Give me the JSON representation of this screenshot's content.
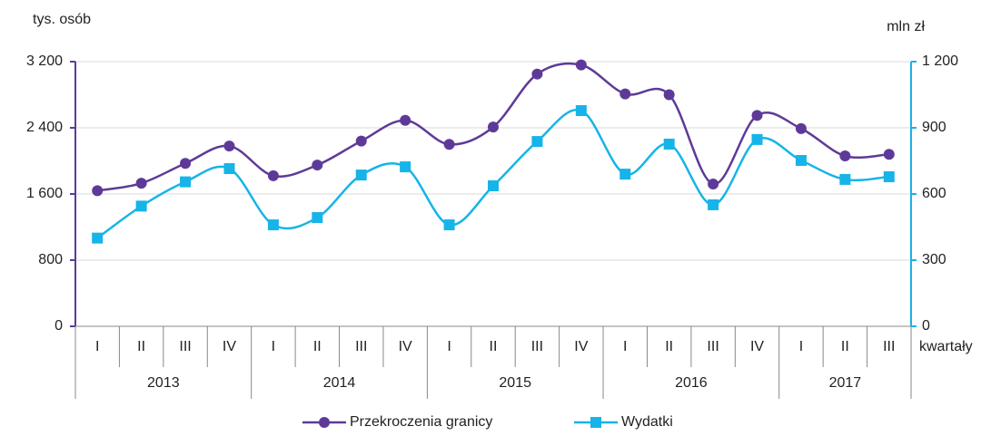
{
  "chart_data": {
    "type": "line",
    "y_label": "tys. osób",
    "y2_label": "mln zł",
    "x_label": "kwartały",
    "categories": [
      "I",
      "II",
      "III",
      "IV",
      "I",
      "II",
      "III",
      "IV",
      "I",
      "II",
      "III",
      "IV",
      "I",
      "II",
      "III",
      "IV",
      "I",
      "II",
      "III"
    ],
    "years": [
      "2013",
      "2014",
      "2015",
      "2016",
      "2017"
    ],
    "series": [
      {
        "name": "Przekroczenia granicy",
        "color": "#5e3a98",
        "axis": "y",
        "values": [
          1640,
          1730,
          1970,
          2180,
          1820,
          1950,
          2240,
          2490,
          2200,
          2410,
          3050,
          3160,
          2810,
          2800,
          1720,
          2550,
          2390,
          2060,
          2080
        ]
      },
      {
        "name": "Wydatki",
        "color": "#16b4e8",
        "axis": "y2",
        "values": [
          400,
          545,
          655,
          715,
          460,
          493,
          686,
          723,
          460,
          637,
          838,
          978,
          690,
          826,
          551,
          847,
          752,
          666,
          678
        ]
      }
    ],
    "ylim": [
      0,
      3200
    ],
    "yticks": [
      0,
      800,
      {
        "value": 1600,
        "label": "1 600"
      },
      {
        "value": 2400,
        "label": "2 400"
      },
      {
        "value": 3200,
        "label": "3 200"
      }
    ],
    "y2lim": [
      0,
      1200
    ],
    "y2ticks": [
      0,
      300,
      600,
      900,
      {
        "value": 1200,
        "label": "1 200"
      }
    ],
    "grid": true,
    "legend": "bottom"
  }
}
